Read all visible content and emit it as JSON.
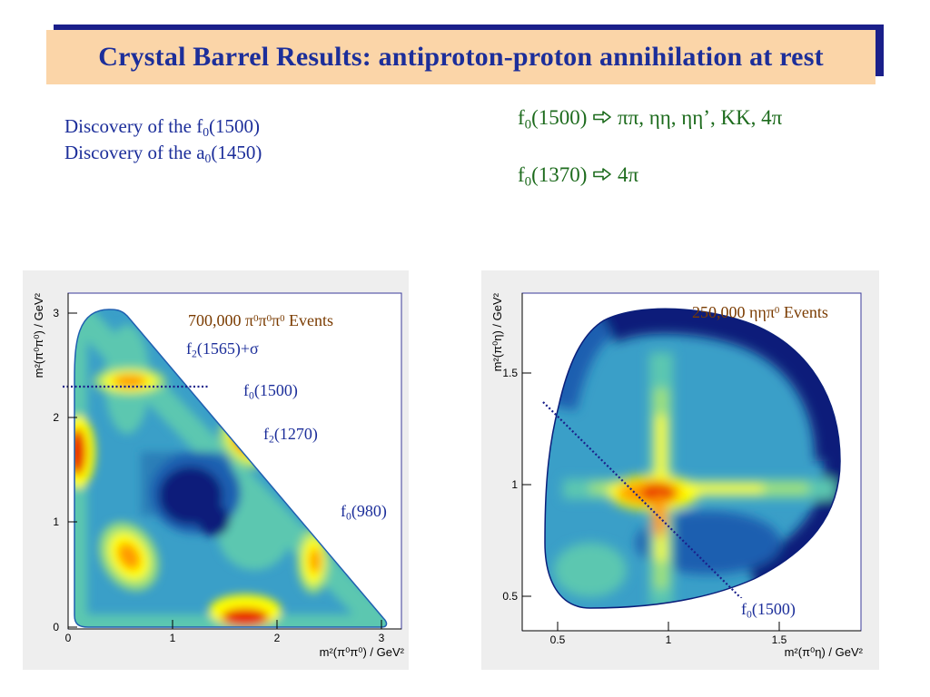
{
  "slide": {
    "title": "Crystal Barrel Results: antiproton-proton annihilation at rest",
    "discoveries": [
      {
        "prefix": "Discovery of the ",
        "sym": "f",
        "sub": "0",
        "mass": "(1500)"
      },
      {
        "prefix": "Discovery of the ",
        "sym": "a",
        "sub": "0",
        "mass": "(1450)"
      }
    ],
    "decays": [
      {
        "sym": "f",
        "sub": "0",
        "mass": "(1500)",
        "modes": "ππ, ηη, ηη’, KK, 4π"
      },
      {
        "sym": "f",
        "sub": "0",
        "mass": "(1370)",
        "modes": "4π"
      }
    ],
    "arrow_icon": "right-arrow-icon"
  },
  "plot_left": {
    "events_pre": "700,000 π",
    "events_sup": "0",
    "events_mid": "π",
    "events_mid2": "π",
    "events_post": " Events",
    "labels": {
      "f2_1565": {
        "sym": "f",
        "sub": "2",
        "rest": "(1565)+σ"
      },
      "f0_1500": {
        "sym": "f",
        "sub": "0",
        "rest": "(1500)"
      },
      "f2_1270": {
        "sym": "f",
        "sub": "2",
        "rest": "(1270)"
      },
      "f0_980": {
        "sym": "f",
        "sub": "0",
        "rest": "(980)"
      }
    },
    "xlabel": "m²(π⁰π⁰) / GeV²",
    "ylabel": "m²(π⁰π⁰) / GeV²",
    "xticks": [
      "0",
      "1",
      "2",
      "3"
    ],
    "yticks": [
      "0",
      "1",
      "2",
      "3"
    ]
  },
  "plot_right": {
    "events_pre": "250,000 ηηπ",
    "events_sup": "0",
    "events_post": " Events",
    "label": {
      "sym": "f",
      "sub": "0",
      "rest": "(1500)"
    },
    "xlabel": "m²(π⁰η) / GeV²",
    "ylabel": "m²(π⁰η) / GeV²",
    "xticks": [
      "0.5",
      "1",
      "1.5"
    ],
    "yticks": [
      "0.5",
      "1",
      "1.5"
    ]
  },
  "colors": {
    "title_bg": "#fbd5a8",
    "title_shadow": "#1a1f8a",
    "title_text": "#1c2e9a",
    "decay_text": "#1d6b1d",
    "scale": [
      "#0a1e7a",
      "#1f5fb0",
      "#3a9fc8",
      "#5cc7b0",
      "#9ee07a",
      "#ffff00",
      "#ff9a00",
      "#e82000"
    ]
  }
}
